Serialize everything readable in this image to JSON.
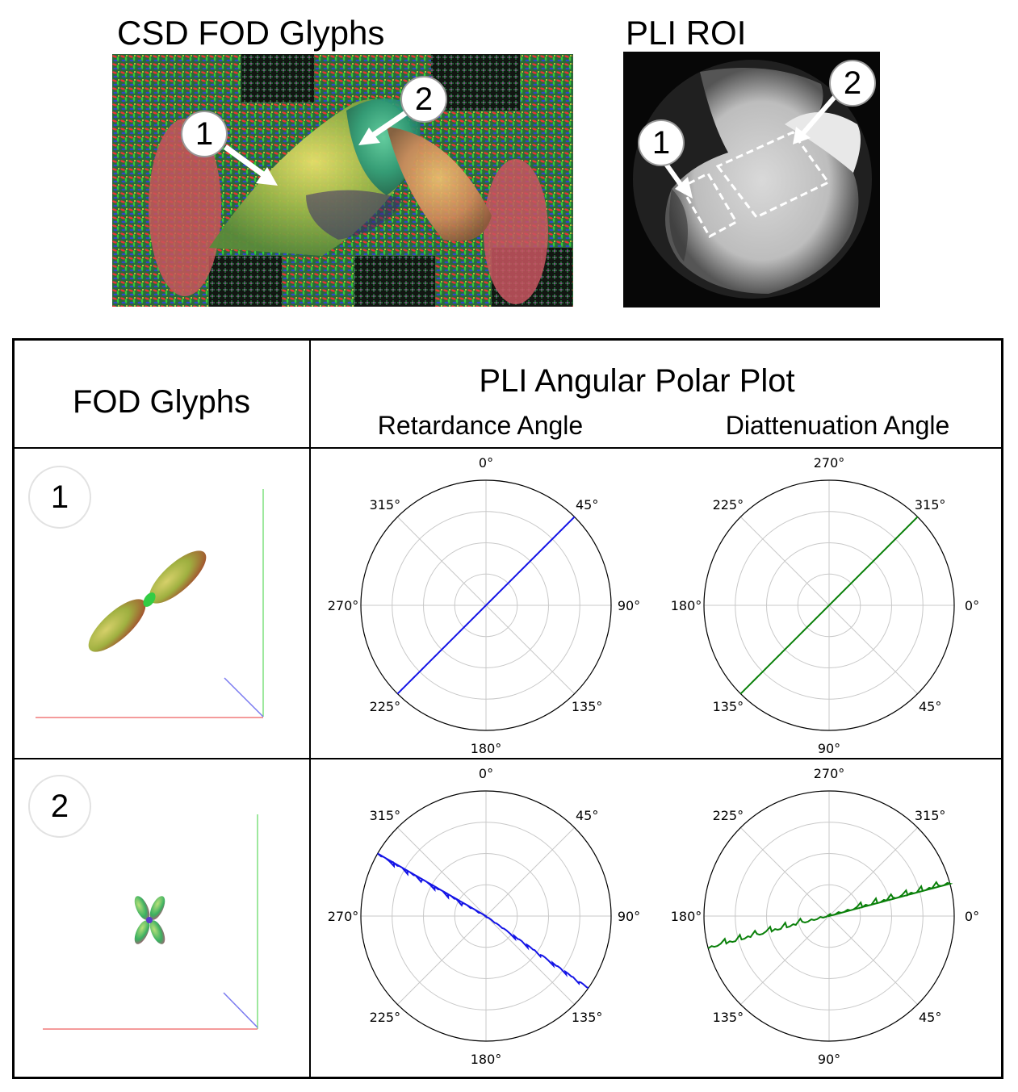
{
  "top": {
    "left_title": "CSD FOD Glyphs",
    "right_title": "PLI ROI",
    "left_callouts": [
      "1",
      "2"
    ],
    "right_callouts": [
      "1",
      "2"
    ]
  },
  "table": {
    "col1_header": "FOD Glyphs",
    "col2_header": "PLI Angular Polar Plot",
    "sub_retardance": "Retardance Angle",
    "sub_diattenuation": "Diattenuation Angle",
    "row_labels": [
      "1",
      "2"
    ]
  },
  "colors": {
    "retardance": "#1414e6",
    "diattenuation": "#0a800a",
    "grid": "#c8c8c8"
  },
  "chart_data": [
    {
      "type": "polar-line",
      "id": "ret-1",
      "angle_labels": [
        "0°",
        "45°",
        "90°",
        "135°",
        "180°",
        "225°",
        "270°",
        "315°"
      ],
      "dominant_axis_deg": [
        45,
        225
      ]
    },
    {
      "type": "polar-line",
      "id": "dia-1",
      "angle_labels": [
        "270°",
        "315°",
        "0°",
        "45°",
        "90°",
        "135°",
        "180°",
        "225°"
      ],
      "dominant_axis_deg": [
        315,
        135
      ]
    },
    {
      "type": "polar-line",
      "id": "ret-2",
      "angle_labels": [
        "0°",
        "45°",
        "90°",
        "135°",
        "180°",
        "225°",
        "270°",
        "315°"
      ],
      "dominant_axis_deg": [
        300,
        125
      ]
    },
    {
      "type": "polar-line",
      "id": "dia-2",
      "angle_labels": [
        "270°",
        "315°",
        "0°",
        "45°",
        "90°",
        "135°",
        "180°",
        "225°"
      ],
      "dominant_axis_deg": [
        345,
        165
      ]
    }
  ]
}
